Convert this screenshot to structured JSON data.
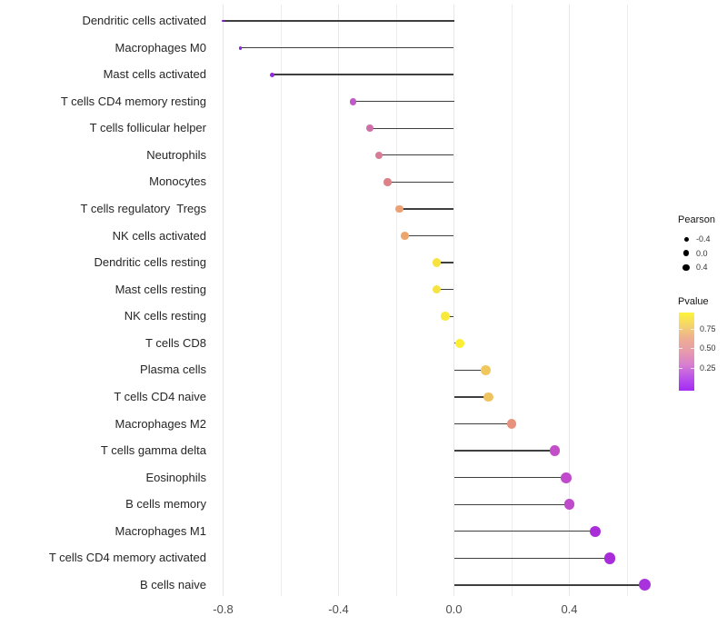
{
  "chart_data": {
    "type": "scatter",
    "variant": "lollipop",
    "title": "",
    "xlabel": "",
    "ylabel": "",
    "grid": "vertical-only",
    "categories": [
      "Dendritic cells activated",
      "Macrophages M0",
      "Mast cells activated",
      "T cells CD4 memory resting",
      "T cells follicular helper",
      "Neutrophils",
      "Monocytes",
      "T cells regulatory  Tregs",
      "NK cells activated",
      "Dendritic cells resting",
      "Mast cells resting",
      "NK cells resting",
      "T cells CD8",
      "Plasma cells",
      "T cells CD4 naive",
      "Macrophages M2",
      "T cells gamma delta",
      "Eosinophils",
      "B cells memory",
      "Macrophages M1",
      "T cells CD4 memory activated",
      "B cells naive"
    ],
    "series": [
      {
        "name": "Pearson correlation",
        "values": [
          -0.8,
          -0.74,
          -0.63,
          -0.35,
          -0.29,
          -0.26,
          -0.23,
          -0.19,
          -0.17,
          -0.06,
          -0.06,
          -0.03,
          0.02,
          0.11,
          0.12,
          0.2,
          0.35,
          0.39,
          0.4,
          0.49,
          0.54,
          0.66
        ]
      }
    ],
    "point_colors": [
      "#7E1AD1",
      "#8F26DB",
      "#9428DC",
      "#C159C6",
      "#D06FA7",
      "#D87C95",
      "#DC8389",
      "#ECA175",
      "#EDA56C",
      "#F6E33F",
      "#F6E33F",
      "#F8E93A",
      "#FBEE33",
      "#EFC75D",
      "#EEC360",
      "#E8917D",
      "#C24FC9",
      "#BF4ACB",
      "#BF4ACB",
      "#AA2ED7",
      "#A82CDA",
      "#A832DC"
    ],
    "x_axis": {
      "tick_labels": [
        "-0.8",
        "-0.4",
        "0.0",
        "0.4"
      ],
      "tick_values": [
        -0.8,
        -0.4,
        0.0,
        0.4
      ],
      "minor_tick_values": [
        -0.6,
        -0.2,
        0.2,
        0.6
      ],
      "range": [
        -0.87,
        0.73
      ]
    },
    "legend_position": "right",
    "size_legend": {
      "title": "Pearson",
      "entries": [
        {
          "label": "-0.4",
          "value": -0.4
        },
        {
          "label": "0.0",
          "value": 0.0
        },
        {
          "label": "0.4",
          "value": 0.4
        }
      ],
      "dot_color": "#000000"
    },
    "color_legend": {
      "title": "Pvalue",
      "tick_labels": [
        "0.75",
        "0.50",
        "0.25"
      ],
      "gradient_top_to_bottom": [
        "#FCF53A",
        "#F5D36C",
        "#EDAE92",
        "#E79BAC",
        "#D77FD0",
        "#BB53EA",
        "#A32BF4"
      ]
    },
    "stem_color": "#3f3f3f",
    "baseline_value": 0.0
  }
}
